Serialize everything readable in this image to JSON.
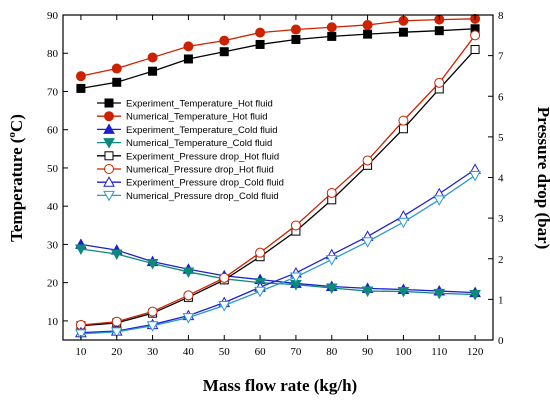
{
  "chart_data": {
    "type": "line",
    "x": [
      10,
      20,
      30,
      40,
      50,
      60,
      70,
      80,
      90,
      100,
      110,
      120
    ],
    "xlabel": "Mass flow rate (kg/h)",
    "xlim": [
      5,
      125
    ],
    "xticks": [
      "10",
      "20",
      "30",
      "40",
      "50",
      "60",
      "70",
      "80",
      "90",
      "100",
      "110",
      "120"
    ],
    "ylabel_left_main": "Temperature (",
    "ylabel_left_sup": "o",
    "ylabel_left_tail": "C)",
    "ylim_left": [
      5,
      90
    ],
    "yticks_left": [
      "10",
      "20",
      "30",
      "40",
      "50",
      "60",
      "70",
      "80",
      "90"
    ],
    "ylabel_right": "Pressure drop (bar)",
    "ylim_right": [
      0,
      8
    ],
    "yticks_right": [
      "0",
      "1",
      "2",
      "3",
      "4",
      "5",
      "6",
      "7",
      "8"
    ],
    "legend_position": "center-left",
    "series": [
      {
        "name": "Experiment_Temperature_Hot fluid",
        "axis": "left",
        "color": "#000000",
        "marker": "square-filled",
        "values": [
          70.8,
          72.4,
          75.3,
          78.5,
          80.4,
          82.3,
          83.6,
          84.4,
          85.0,
          85.5,
          85.9,
          86.4
        ]
      },
      {
        "name": "Numerical_Temperature_Hot fluid",
        "axis": "left",
        "color": "#cc2200",
        "marker": "circle-filled",
        "values": [
          74.0,
          76.0,
          78.9,
          81.8,
          83.3,
          85.4,
          86.2,
          86.8,
          87.4,
          88.5,
          88.8,
          89.0
        ]
      },
      {
        "name": "Experiment_Temperature_Cold fluid",
        "axis": "left",
        "color": "#1f1fd1",
        "marker": "triangle-up-filled",
        "values": [
          30.0,
          28.5,
          25.5,
          23.5,
          21.8,
          20.8,
          19.8,
          19.0,
          18.5,
          18.2,
          17.8,
          17.4
        ]
      },
      {
        "name": "Numerical_Temperature_Cold fluid",
        "axis": "left",
        "color": "#0f8a7a",
        "marker": "triangle-down-filled",
        "values": [
          28.8,
          27.5,
          25.0,
          22.8,
          21.0,
          20.0,
          19.5,
          18.6,
          17.8,
          17.7,
          17.2,
          16.9
        ]
      },
      {
        "name": "Experiment_Pressure drop_Hot fluid",
        "axis": "right",
        "color": "#000000",
        "marker": "square-open",
        "values": [
          0.35,
          0.42,
          0.66,
          1.05,
          1.48,
          2.05,
          2.68,
          3.45,
          4.3,
          5.2,
          6.18,
          7.15
        ]
      },
      {
        "name": "Numerical_Pressure drop_Hot fluid",
        "axis": "right",
        "color": "#cc2200",
        "marker": "circle-open",
        "values": [
          0.37,
          0.45,
          0.7,
          1.1,
          1.53,
          2.15,
          2.82,
          3.62,
          4.42,
          5.4,
          6.33,
          7.5
        ]
      },
      {
        "name": "Experiment_Pressure drop_Cold fluid",
        "axis": "right",
        "color": "#1f1fd1",
        "marker": "triangle-up-open",
        "values": [
          0.18,
          0.22,
          0.38,
          0.6,
          0.92,
          1.3,
          1.65,
          2.1,
          2.55,
          3.05,
          3.6,
          4.2
        ]
      },
      {
        "name": "Numerical_Pressure drop_Cold fluid",
        "axis": "right",
        "color": "#2a9acd",
        "marker": "triangle-down-open",
        "values": [
          0.15,
          0.2,
          0.35,
          0.55,
          0.85,
          1.2,
          1.55,
          1.98,
          2.42,
          2.9,
          3.45,
          4.05
        ]
      }
    ]
  }
}
